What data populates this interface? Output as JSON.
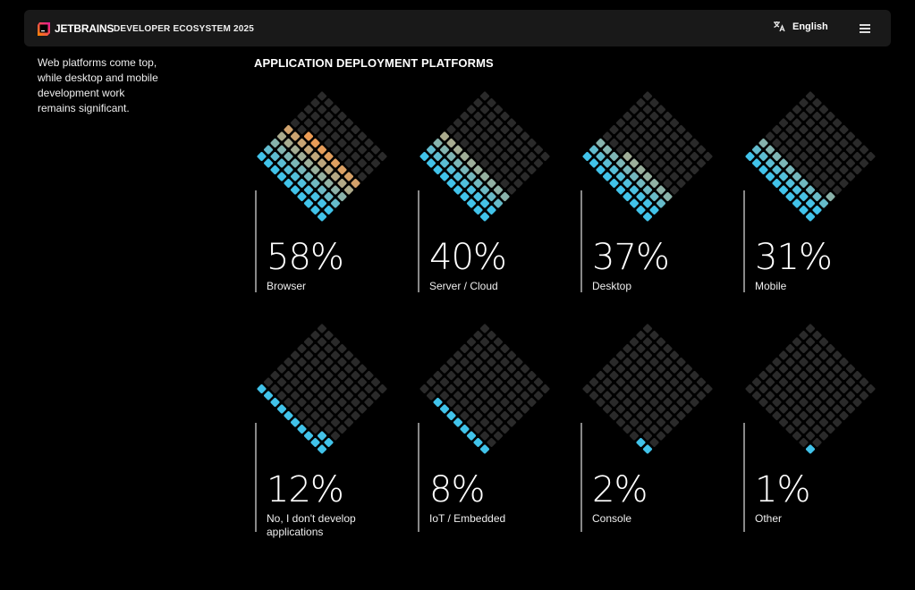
{
  "header": {
    "brand": "JETBRAINS",
    "subtitle": "DEVELOPER ECOSYSTEM 2025",
    "language": "English",
    "language_icon": "translate-icon",
    "menu_icon": "hamburger-menu-icon"
  },
  "intro": "Web platforms come top, while desktop and mobile development work remains significant.",
  "section_title": "APPLICATION DEPLOYMENT PLATFORMS",
  "colors": {
    "empty": "#2a2a2a",
    "start": "#41c3ea",
    "end": "#f7994a",
    "background": "#000000"
  },
  "chart_data": {
    "type": "waffle",
    "title": "APPLICATION DEPLOYMENT PLATFORMS",
    "items": [
      {
        "label": "Browser",
        "value": 58,
        "display": "58%"
      },
      {
        "label": "Server / Cloud",
        "value": 40,
        "display": "40%"
      },
      {
        "label": "Desktop",
        "value": 37,
        "display": "37%"
      },
      {
        "label": "Mobile",
        "value": 31,
        "display": "31%"
      },
      {
        "label": "No, I don't develop applications",
        "value": 12,
        "display": "12%"
      },
      {
        "label": "IoT / Embedded",
        "value": 8,
        "display": "8%"
      },
      {
        "label": "Console",
        "value": 2,
        "display": "2%"
      },
      {
        "label": "Other",
        "value": 1,
        "display": "1%"
      }
    ]
  }
}
